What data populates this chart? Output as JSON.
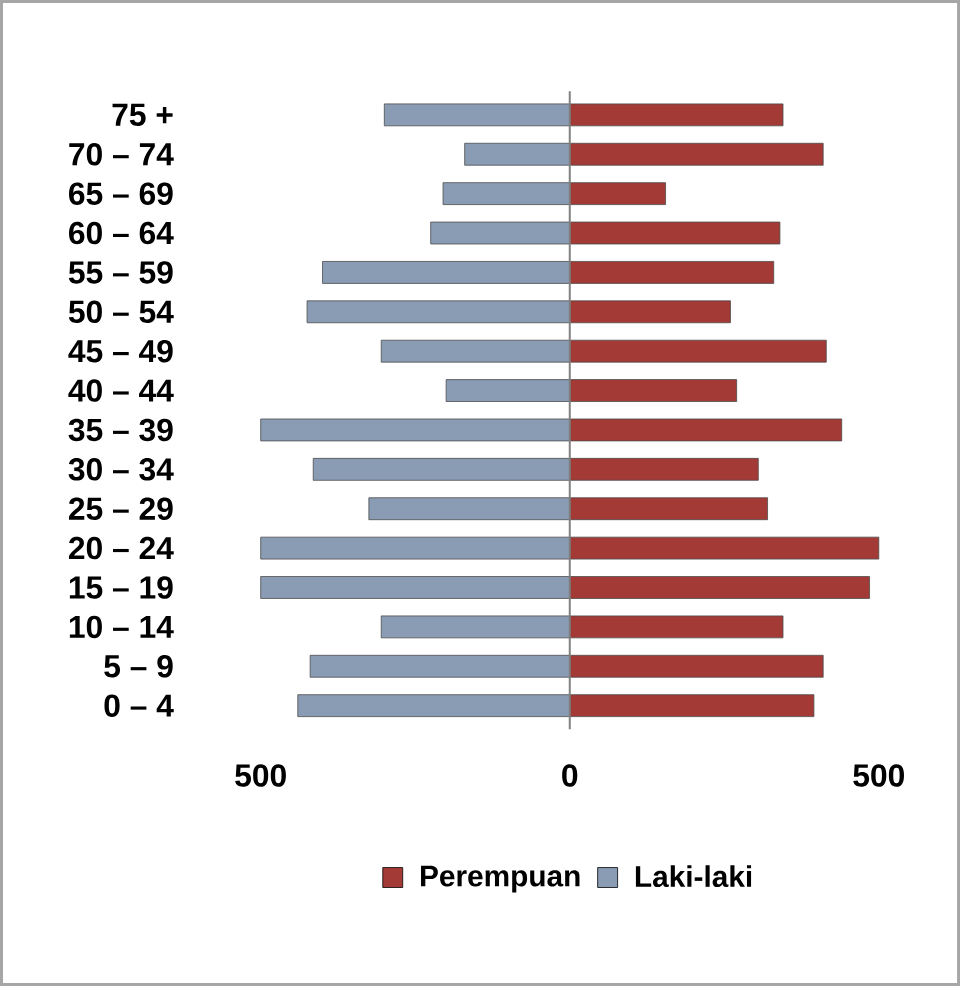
{
  "chart_data": {
    "type": "bar",
    "orientation": "horizontal",
    "categories": [
      "75 +",
      "70 – 74",
      "65 – 69",
      "60 – 64",
      "55 – 59",
      "50 – 54",
      "45 – 49",
      "40 – 44",
      "35 – 39",
      "30 – 34",
      "25 – 29",
      "20 – 24",
      "15 – 19",
      "10 – 14",
      "5 – 9",
      "0 – 4"
    ],
    "series": [
      {
        "name": "Perempuan",
        "color": "#a33a36",
        "values": [
          345,
          410,
          155,
          340,
          330,
          260,
          415,
          270,
          440,
          305,
          320,
          500,
          485,
          345,
          410,
          395
        ]
      },
      {
        "name": "Laki-laki",
        "color": "#8a9bb4",
        "values": [
          -300,
          -170,
          -205,
          -225,
          -400,
          -425,
          -305,
          -200,
          -500,
          -415,
          -325,
          -500,
          -500,
          -305,
          -420,
          -440
        ]
      }
    ],
    "xlim": [
      -500,
      500
    ],
    "xticks": [
      {
        "value": -500,
        "label": "500"
      },
      0,
      500
    ],
    "stacked": true,
    "ref_lines": [
      {
        "axis": "x",
        "value": 0,
        "color": "#808080"
      }
    ],
    "legend": "bottom"
  }
}
